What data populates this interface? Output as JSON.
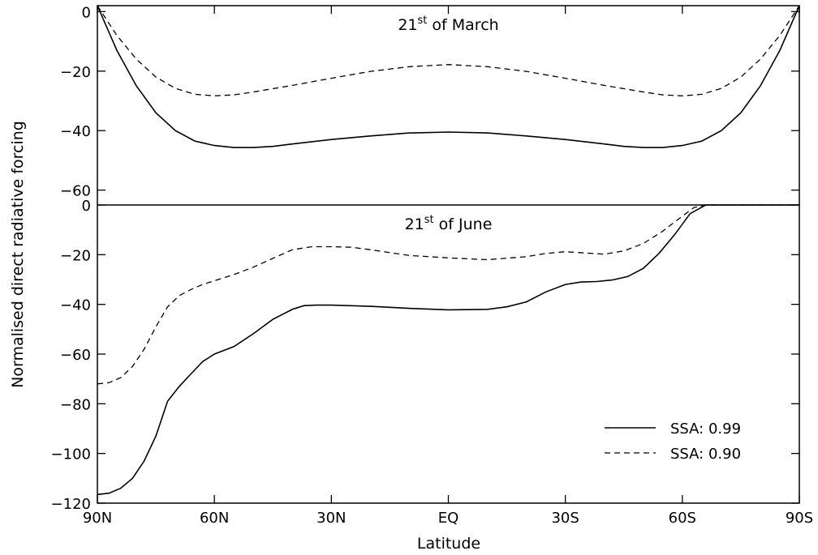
{
  "chart_data": [
    {
      "type": "line",
      "panel": "top",
      "title_main": "21",
      "title_sup": "st",
      "title_rest": " of March",
      "ylim": [
        -65,
        2
      ],
      "yticks": [
        0,
        -20,
        -40,
        -60
      ],
      "ytick_labels": [
        "0",
        "−20",
        "−40",
        "−60"
      ],
      "series": [
        {
          "style": "solid",
          "x": [
            90,
            85,
            80,
            75,
            70,
            65,
            60,
            55,
            50,
            45,
            40,
            30,
            20,
            10,
            0,
            -10,
            -20,
            -30,
            -40,
            -45,
            -50,
            -55,
            -60,
            -65,
            -70,
            -75,
            -80,
            -85,
            -90
          ],
          "y": [
            2,
            -13,
            -25,
            -34,
            -40,
            -43.5,
            -45,
            -45.7,
            -45.7,
            -45.3,
            -44.5,
            -43,
            -41.8,
            -40.8,
            -40.5,
            -40.8,
            -41.8,
            -43,
            -44.5,
            -45.3,
            -45.7,
            -45.7,
            -45,
            -43.5,
            -40,
            -34,
            -25,
            -13,
            2
          ]
        },
        {
          "style": "dashed",
          "x": [
            90,
            85,
            80,
            75,
            70,
            65,
            60,
            55,
            50,
            40,
            30,
            20,
            10,
            0,
            -10,
            -20,
            -30,
            -40,
            -50,
            -55,
            -60,
            -65,
            -70,
            -75,
            -80,
            -85,
            -90
          ],
          "y": [
            2,
            -8,
            -16,
            -22,
            -25.8,
            -27.8,
            -28.3,
            -28,
            -27,
            -24.8,
            -22.4,
            -20.1,
            -18.5,
            -17.8,
            -18.5,
            -20.1,
            -22.4,
            -24.8,
            -27,
            -28,
            -28.3,
            -27.8,
            -25.8,
            -22,
            -16,
            -8,
            2
          ]
        }
      ]
    },
    {
      "type": "line",
      "panel": "bottom",
      "title_main": "21",
      "title_sup": "st",
      "title_rest": " of June",
      "ylim": [
        -120,
        0
      ],
      "yticks": [
        0,
        -20,
        -40,
        -60,
        -80,
        -100,
        -120
      ],
      "ytick_labels": [
        "0",
        "−20",
        "−40",
        "−60",
        "−80",
        "−100",
        "−120"
      ],
      "series": [
        {
          "style": "solid",
          "x": [
            90,
            87,
            84,
            81,
            78,
            75,
            72,
            69,
            66,
            63,
            60,
            55,
            50,
            45,
            40,
            37,
            34,
            30,
            20,
            10,
            0,
            -10,
            -15,
            -20,
            -25,
            -30,
            -34,
            -38,
            -42,
            -46,
            -50,
            -54,
            -58,
            -62,
            -66,
            -70,
            -80,
            -90
          ],
          "y": [
            -116.5,
            -116,
            -114,
            -110,
            -103,
            -93,
            -79,
            -73,
            -68,
            -63,
            -60,
            -57,
            -51.8,
            -46,
            -42,
            -40.5,
            -40.3,
            -40.3,
            -40.8,
            -41.6,
            -42.2,
            -42,
            -41,
            -39,
            -35,
            -32,
            -31,
            -30.8,
            -30.2,
            -28.8,
            -25.5,
            -19.5,
            -12,
            -3.5,
            0,
            0,
            0,
            0
          ]
        },
        {
          "style": "dashed",
          "x": [
            90,
            87,
            84,
            81,
            78,
            75,
            72,
            69,
            66,
            63,
            60,
            55,
            50,
            45,
            40,
            35,
            30,
            25,
            20,
            10,
            0,
            -10,
            -20,
            -25,
            -30,
            -35,
            -40,
            -45,
            -50,
            -55,
            -60,
            -63,
            -66,
            -70,
            -80,
            -90
          ],
          "y": [
            -72,
            -71.5,
            -69.5,
            -65,
            -58,
            -49,
            -41,
            -36.5,
            -34,
            -32,
            -30.5,
            -28,
            -25,
            -21.5,
            -18,
            -16.8,
            -16.8,
            -17,
            -18,
            -20.3,
            -21.3,
            -22,
            -20.8,
            -19.5,
            -18.8,
            -19.3,
            -19.8,
            -18.5,
            -15.5,
            -10.5,
            -4.5,
            -1,
            0,
            0,
            0,
            0
          ]
        }
      ]
    }
  ],
  "xaxis": {
    "xlim": [
      90,
      -90
    ],
    "ticks": [
      90,
      60,
      30,
      0,
      -30,
      -60,
      -90
    ],
    "tick_labels": [
      "90N",
      "60N",
      "30N",
      "EQ",
      "30S",
      "60S",
      "90S"
    ],
    "label": "Latitude"
  },
  "yaxis": {
    "label": "Normalised direct radiative forcing"
  },
  "legend": {
    "placement": "lower-right",
    "items": [
      {
        "label": "SSA: 0.99",
        "style": "solid"
      },
      {
        "label": "SSA: 0.90",
        "style": "dashed"
      }
    ]
  },
  "colors": {
    "line": "#000000",
    "background": "#ffffff"
  }
}
